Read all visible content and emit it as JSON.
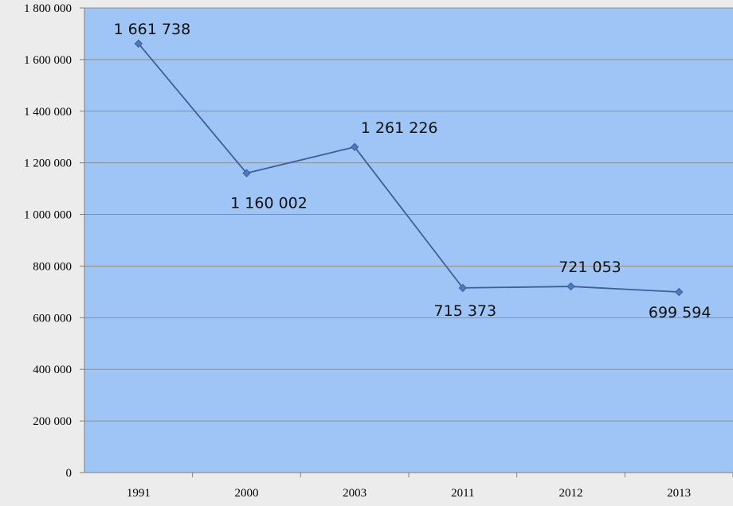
{
  "chart_data": {
    "type": "line",
    "categories": [
      "1991",
      "2000",
      "2003",
      "2011",
      "2012",
      "2013"
    ],
    "values": [
      1661738,
      1160002,
      1261226,
      715373,
      721053,
      699594
    ],
    "data_labels": [
      "1 661 738",
      "1 160 002",
      "1 261 226",
      "715 373",
      "721 053",
      "699 594"
    ],
    "yticks": [
      0,
      200000,
      400000,
      600000,
      800000,
      1000000,
      1200000,
      1400000,
      1600000,
      1800000
    ],
    "ytick_labels": [
      "0",
      "200 000",
      "400 000",
      "600 000",
      "800 000",
      "1 000 000",
      "1 200 000",
      "1 400 000",
      "1 600 000",
      "1 800 000"
    ],
    "ylim": [
      0,
      1800000
    ],
    "title": "",
    "xlabel": "",
    "ylabel": "",
    "grid": true,
    "legend": "none",
    "marker": "diamond",
    "colors": {
      "plot_background": "#9ec5f5",
      "page_background": "#ececec",
      "line": "#3e5f9a",
      "marker": "#4f79bd",
      "gridline": "#8f8f8f",
      "axis": "#808080"
    }
  }
}
